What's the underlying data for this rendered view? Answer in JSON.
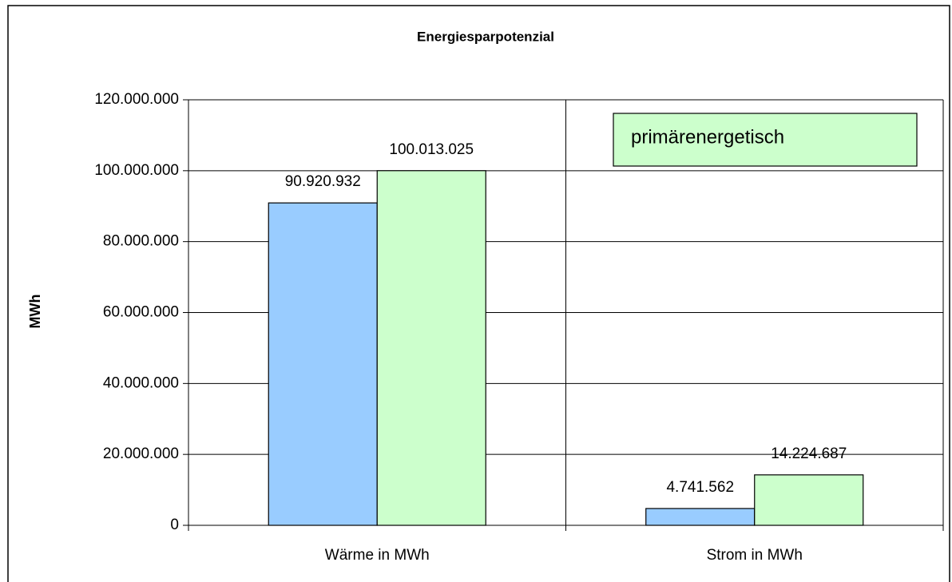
{
  "chart_data": {
    "type": "bar",
    "title": "Energiesparpotenzial",
    "y_label": "MWh",
    "annotation": "primärenergetisch",
    "categories": [
      "Wärme in MWh",
      "Strom in MWh"
    ],
    "series": [
      {
        "color": "#99ccff",
        "values": [
          90920932,
          4741562
        ],
        "value_labels": [
          "90.920.932",
          "4.741.562"
        ]
      },
      {
        "color": "#ccffcc",
        "values": [
          100013025,
          14224687
        ],
        "value_labels": [
          "100.013.025",
          "14.224.687"
        ]
      }
    ],
    "ylim": [
      0,
      120000000
    ],
    "yticks": [
      0,
      {
        "value": 20000000,
        "label": "20.000.000"
      },
      {
        "value": 40000000,
        "label": "40.000.000"
      },
      {
        "value": 60000000,
        "label": "60.000.000"
      },
      {
        "value": 80000000,
        "label": "80.000.000"
      },
      {
        "value": 100000000,
        "label": "100.000.000"
      },
      {
        "value": 120000000,
        "label": "120.000.000"
      }
    ],
    "grid": true
  }
}
